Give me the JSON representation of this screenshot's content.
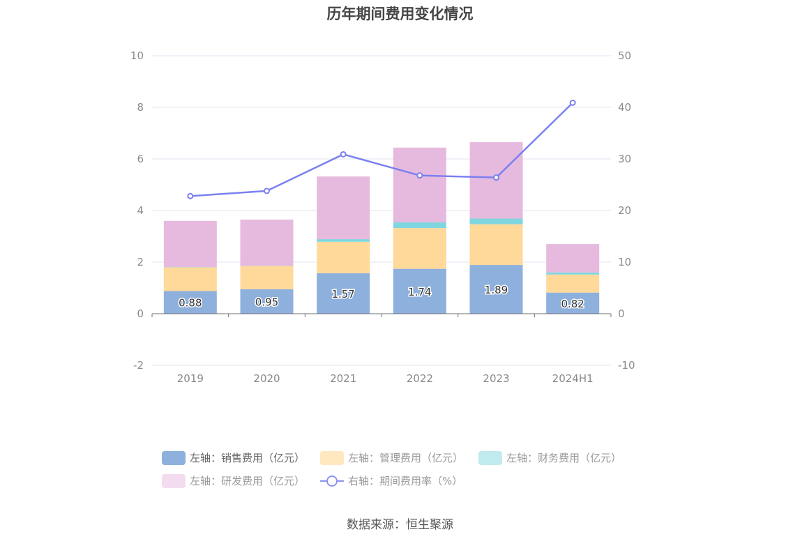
{
  "title": "历年期间费用变化情况",
  "source": "数据来源：恒生聚源",
  "colors": {
    "sales": "#8eb0dd",
    "admin": "#ffd99a",
    "finance": "#7fd6de",
    "rd": "#e6bade",
    "rate": "#7b80ef",
    "grid": "#e3e6f0",
    "axis_text": "#8a8a8a"
  },
  "legend": [
    {
      "label": "左轴：销售费用（亿元）",
      "series": "sales"
    },
    {
      "label": "左轴：管理费用（亿元）",
      "series": "admin"
    },
    {
      "label": "左轴：财务费用（亿元）",
      "series": "finance"
    },
    {
      "label": "左轴：研发费用（亿元）",
      "series": "rd"
    },
    {
      "label": "右轴：期间费用率（%）",
      "series": "rate"
    }
  ],
  "chart_data": {
    "type": "bar",
    "categories": [
      "2019",
      "2020",
      "2021",
      "2022",
      "2023",
      "2024H1"
    ],
    "left_axis": {
      "ylim": [
        -2,
        10
      ],
      "ticks": [
        "-2",
        "0",
        "2",
        "4",
        "6",
        "8",
        "10"
      ]
    },
    "right_axis": {
      "ylim": [
        -10,
        50
      ],
      "ticks": [
        "-10",
        "0",
        "10",
        "20",
        "30",
        "40",
        "50"
      ]
    },
    "series": [
      {
        "name": "左轴：销售费用（亿元）",
        "key": "sales",
        "type": "bar",
        "stack": "left",
        "values": [
          0.88,
          0.95,
          1.57,
          1.74,
          1.89,
          0.82
        ],
        "labels": [
          "0.88",
          "0.95",
          "1.57",
          "1.74",
          "1.89",
          "0.82"
        ]
      },
      {
        "name": "左轴：管理费用（亿元）",
        "key": "admin",
        "type": "bar",
        "stack": "left",
        "values": [
          0.92,
          0.9,
          1.22,
          1.58,
          1.58,
          0.7
        ]
      },
      {
        "name": "左轴：财务费用（亿元）",
        "key": "finance",
        "type": "bar",
        "stack": "left",
        "values": [
          0.01,
          0.01,
          0.1,
          0.22,
          0.22,
          0.08
        ]
      },
      {
        "name": "左轴：研发费用（亿元）",
        "key": "rd",
        "type": "bar",
        "stack": "left",
        "values": [
          1.79,
          1.79,
          2.43,
          2.9,
          2.96,
          1.1
        ]
      },
      {
        "name": "右轴：期间费用率（%）",
        "key": "rate",
        "type": "line",
        "axis": "right",
        "values": [
          22.8,
          23.8,
          30.9,
          26.8,
          26.4,
          40.9
        ]
      }
    ]
  }
}
